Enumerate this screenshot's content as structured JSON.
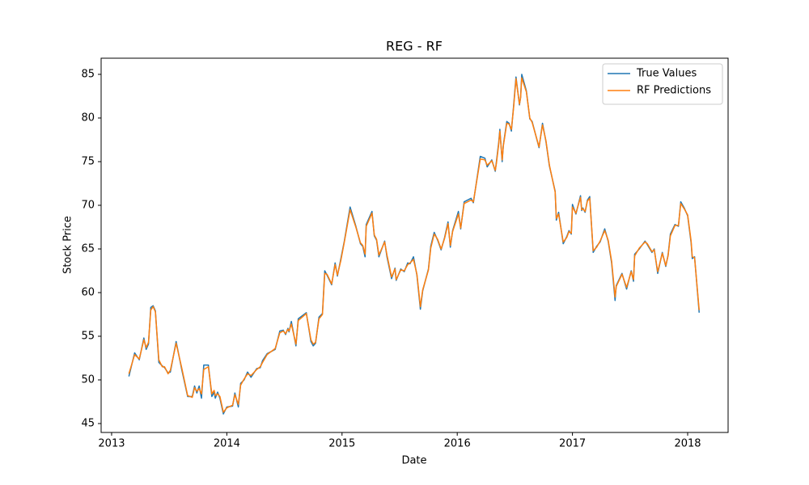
{
  "chart_data": {
    "type": "line",
    "title": "REG - RF",
    "x_label": "Date",
    "y_label": "Stock Price",
    "x": [
      2013.15,
      2013.2,
      2013.24,
      2013.28,
      2013.3,
      2013.32,
      2013.34,
      2013.36,
      2013.38,
      2013.41,
      2013.44,
      2013.46,
      2013.49,
      2013.51,
      2013.56,
      2013.61,
      2013.66,
      2013.7,
      2013.72,
      2013.74,
      2013.76,
      2013.78,
      2013.8,
      2013.84,
      2013.87,
      2013.89,
      2013.9,
      2013.92,
      2013.94,
      2013.97,
      2014.0,
      2014.05,
      2014.07,
      2014.1,
      2014.12,
      2014.15,
      2014.18,
      2014.21,
      2014.26,
      2014.29,
      2014.31,
      2014.35,
      2014.42,
      2014.46,
      2014.49,
      2014.51,
      2014.53,
      2014.54,
      2014.56,
      2014.6,
      2014.62,
      2014.69,
      2014.73,
      2014.75,
      2014.77,
      2014.8,
      2014.83,
      2014.85,
      2014.87,
      2014.91,
      2014.94,
      2014.96,
      2014.99,
      2015.02,
      2015.07,
      2015.12,
      2015.16,
      2015.18,
      2015.2,
      2015.21,
      2015.26,
      2015.28,
      2015.3,
      2015.32,
      2015.37,
      2015.39,
      2015.43,
      2015.46,
      2015.47,
      2015.51,
      2015.54,
      2015.57,
      2015.59,
      2015.62,
      2015.65,
      2015.68,
      2015.7,
      2015.75,
      2015.77,
      2015.8,
      2015.83,
      2015.86,
      2015.89,
      2015.92,
      2015.94,
      2015.96,
      2016.01,
      2016.03,
      2016.06,
      2016.12,
      2016.14,
      2016.2,
      2016.24,
      2016.26,
      2016.3,
      2016.33,
      2016.34,
      2016.36,
      2016.37,
      2016.39,
      2016.4,
      2016.43,
      2016.45,
      2016.47,
      2016.49,
      2016.51,
      2016.54,
      2016.55,
      2016.56,
      2016.6,
      2016.63,
      2016.65,
      2016.71,
      2016.74,
      2016.77,
      2016.8,
      2016.85,
      2016.86,
      2016.88,
      2016.92,
      2016.95,
      2016.97,
      2016.99,
      2017.0,
      2017.03,
      2017.07,
      2017.08,
      2017.09,
      2017.11,
      2017.13,
      2017.15,
      2017.18,
      2017.21,
      2017.24,
      2017.28,
      2017.31,
      2017.34,
      2017.37,
      2017.38,
      2017.43,
      2017.47,
      2017.51,
      2017.53,
      2017.54,
      2017.58,
      2017.63,
      2017.65,
      2017.69,
      2017.71,
      2017.74,
      2017.78,
      2017.81,
      2017.83,
      2017.85,
      2017.89,
      2017.92,
      2017.94,
      2017.97,
      2018.0,
      2018.03,
      2018.04,
      2018.06,
      2018.1
    ],
    "series": [
      {
        "name": "True Values",
        "color": "#1f77b4",
        "values": [
          50.4,
          53.1,
          52.3,
          54.8,
          53.5,
          54.1,
          58.3,
          58.5,
          57.9,
          52.0,
          51.6,
          51.4,
          50.8,
          50.9,
          54.4,
          51.1,
          48.1,
          48.1,
          49.3,
          48.5,
          49.3,
          47.9,
          51.7,
          51.7,
          48.1,
          48.6,
          47.9,
          48.6,
          47.9,
          46.1,
          46.9,
          47.0,
          48.5,
          46.9,
          49.6,
          50.0,
          50.9,
          50.3,
          51.3,
          51.4,
          52.2,
          53.0,
          53.5,
          55.6,
          55.7,
          55.2,
          55.9,
          55.5,
          56.7,
          53.9,
          57.0,
          57.7,
          54.4,
          53.9,
          54.2,
          57.2,
          57.6,
          62.5,
          62.0,
          60.9,
          63.4,
          61.9,
          63.9,
          65.9,
          69.8,
          67.6,
          65.6,
          65.3,
          64.1,
          67.8,
          69.3,
          66.5,
          66.0,
          64.1,
          65.9,
          64.1,
          61.6,
          62.8,
          61.4,
          62.7,
          62.4,
          63.4,
          63.3,
          64.1,
          62.0,
          58.1,
          60.2,
          62.7,
          65.3,
          66.9,
          66.0,
          64.9,
          66.3,
          68.1,
          65.2,
          67.1,
          69.3,
          67.3,
          70.4,
          70.8,
          70.3,
          75.6,
          75.4,
          74.4,
          75.2,
          73.9,
          75.0,
          77.2,
          78.7,
          75.0,
          76.9,
          79.6,
          79.4,
          78.5,
          81.5,
          84.7,
          81.5,
          82.4,
          85.0,
          83.1,
          79.9,
          79.6,
          76.6,
          79.4,
          77.3,
          74.5,
          71.6,
          68.3,
          69.2,
          65.6,
          66.4,
          67.1,
          66.7,
          70.1,
          69.0,
          71.1,
          69.4,
          69.7,
          69.2,
          70.6,
          71.0,
          64.6,
          65.3,
          65.8,
          67.3,
          65.9,
          63.4,
          59.1,
          60.8,
          62.2,
          60.4,
          62.5,
          61.3,
          64.4,
          65.0,
          65.9,
          65.5,
          64.6,
          65.0,
          62.2,
          64.6,
          63.0,
          64.3,
          66.7,
          67.8,
          67.6,
          70.4,
          69.7,
          68.8,
          65.7,
          63.9,
          64.1,
          57.7
        ]
      },
      {
        "name": "RF Predictions",
        "color": "#ff7f0e",
        "values": [
          50.7,
          52.9,
          52.4,
          54.6,
          53.7,
          54.3,
          58.0,
          58.4,
          57.8,
          52.3,
          51.5,
          51.5,
          50.7,
          51.1,
          54.2,
          51.3,
          48.2,
          48.0,
          49.1,
          48.7,
          49.0,
          48.4,
          51.2,
          51.5,
          48.4,
          48.8,
          48.2,
          48.4,
          48.1,
          46.3,
          46.8,
          47.1,
          48.3,
          47.2,
          49.4,
          50.1,
          50.7,
          50.5,
          51.2,
          51.5,
          52.0,
          52.9,
          53.6,
          55.4,
          55.6,
          55.3,
          55.8,
          55.6,
          56.4,
          54.1,
          56.8,
          57.6,
          54.6,
          54.1,
          54.3,
          57.0,
          57.5,
          62.2,
          62.1,
          61.0,
          63.2,
          62.0,
          63.7,
          65.8,
          69.5,
          67.5,
          65.7,
          65.4,
          64.4,
          67.6,
          69.1,
          66.6,
          66.1,
          64.3,
          65.8,
          64.3,
          61.8,
          62.7,
          61.5,
          62.6,
          62.5,
          63.2,
          63.4,
          63.8,
          62.1,
          58.4,
          60.3,
          62.6,
          65.1,
          66.7,
          66.1,
          65.0,
          66.2,
          67.9,
          65.4,
          67.0,
          69.0,
          67.4,
          70.2,
          70.6,
          70.4,
          75.3,
          75.2,
          74.6,
          75.1,
          74.0,
          74.8,
          77.0,
          78.5,
          75.2,
          76.8,
          79.4,
          79.3,
          78.7,
          81.3,
          84.5,
          81.6,
          82.3,
          84.6,
          83.0,
          80.0,
          79.5,
          76.7,
          79.2,
          77.4,
          74.6,
          71.5,
          68.5,
          69.0,
          65.8,
          66.3,
          67.0,
          66.8,
          69.8,
          69.1,
          70.9,
          69.5,
          69.6,
          69.3,
          70.5,
          70.8,
          64.8,
          65.2,
          65.9,
          67.1,
          66.0,
          63.6,
          59.5,
          60.7,
          62.1,
          60.6,
          62.4,
          61.5,
          64.2,
          65.1,
          65.8,
          65.6,
          64.7,
          64.9,
          62.4,
          64.5,
          63.1,
          64.2,
          66.5,
          67.7,
          67.7,
          70.2,
          69.6,
          68.9,
          65.9,
          64.1,
          64.0,
          58.0
        ]
      }
    ],
    "xlim": [
      2012.909,
      2018.351
    ],
    "xticks": [
      2013,
      2014,
      2015,
      2016,
      2017,
      2018
    ],
    "ylim": [
      43.98,
      86.85
    ],
    "yticks": [
      45,
      50,
      55,
      60,
      65,
      70,
      75,
      80,
      85
    ],
    "legend": "upper right",
    "grid": false
  }
}
